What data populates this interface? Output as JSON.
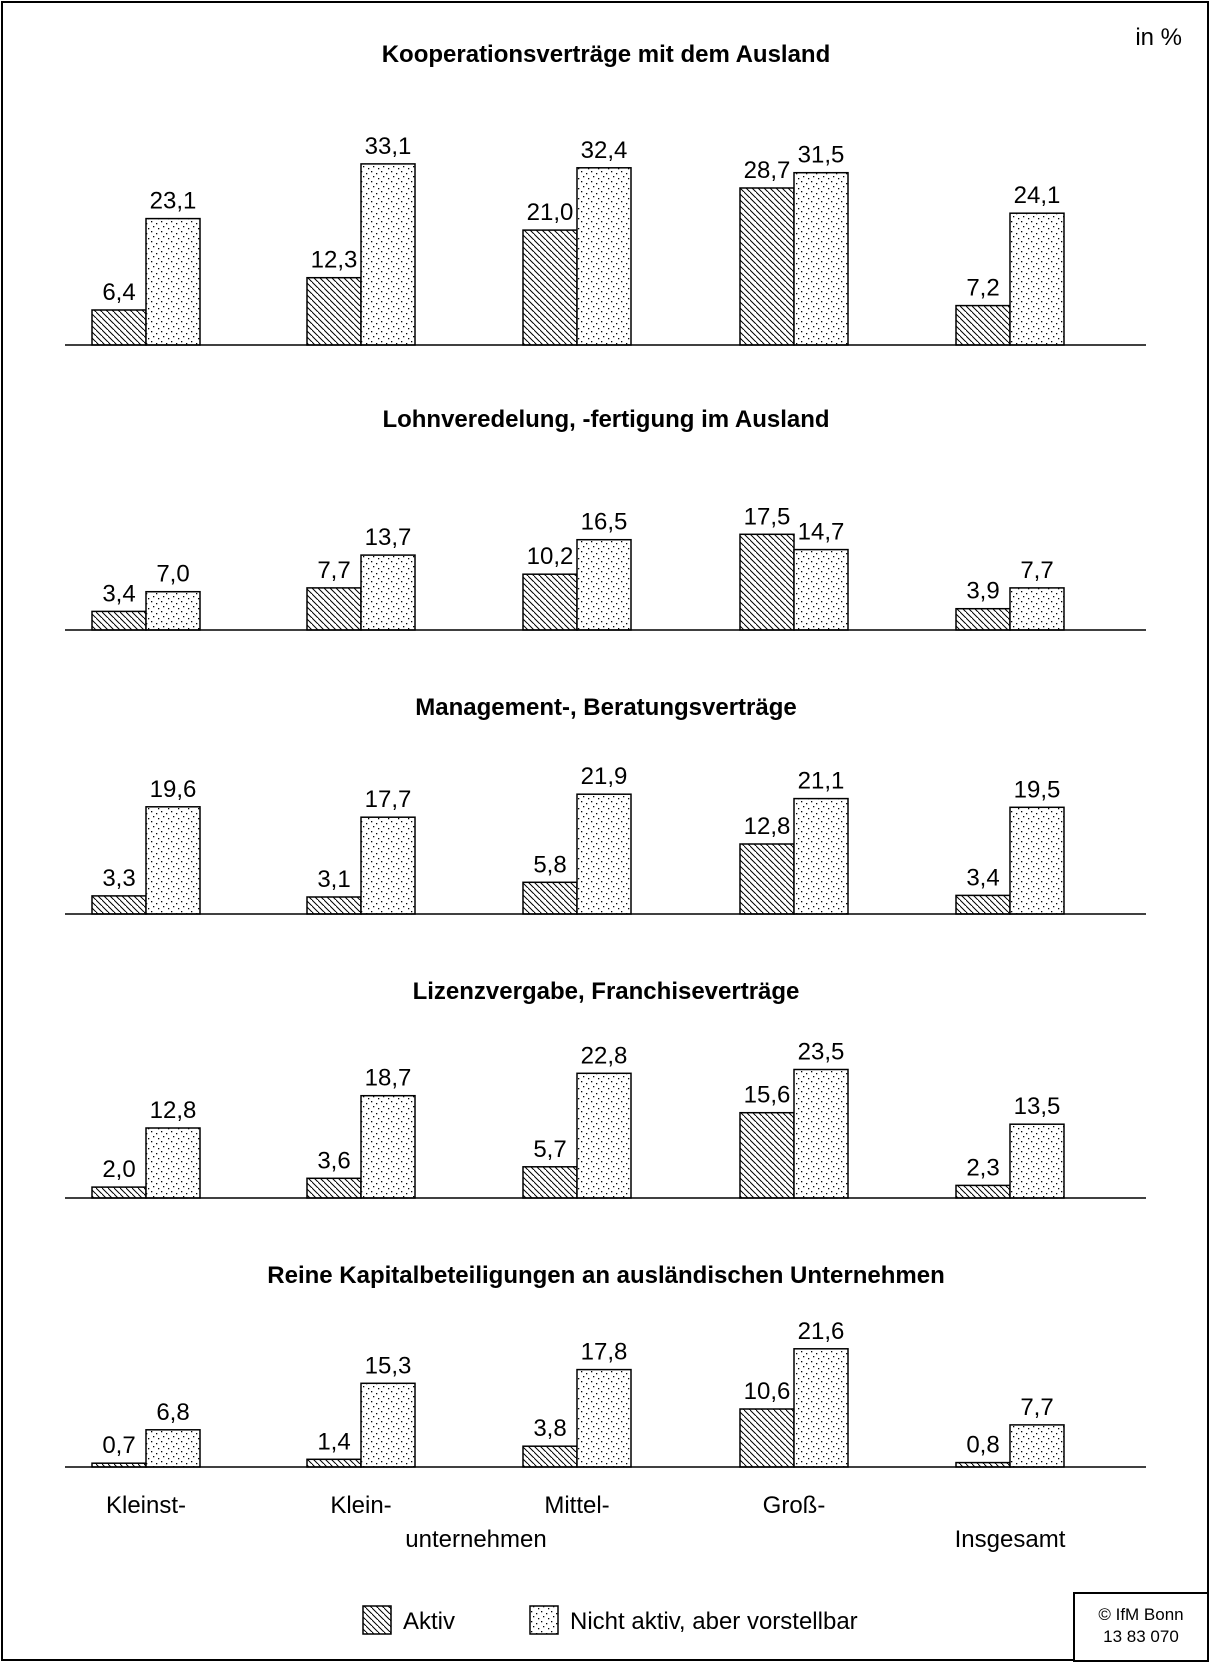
{
  "unit_label": "in %",
  "credit": {
    "line1": "© IfM Bonn",
    "line2": "13  83  070"
  },
  "chart_data": {
    "type": "bar",
    "categories": [
      "Kleinst-",
      "Klein-",
      "Mittel-",
      "Groß-",
      "Insgesamt"
    ],
    "category_caption": "unternehmen",
    "legend": [
      "Aktiv",
      "Nicht aktiv, aber vorstellbar"
    ],
    "patterns": {
      "Aktiv": "diagonal-hatch",
      "Nicht aktiv, aber vorstellbar": "dotted"
    },
    "panels": [
      {
        "title": "Kooperationsverträge mit dem Ausland",
        "series": [
          {
            "name": "Aktiv",
            "values": [
              6.4,
              12.3,
              21.0,
              28.7,
              7.2
            ],
            "labels": [
              "6,4",
              "12,3",
              "21,0",
              "28,7",
              "7,2"
            ]
          },
          {
            "name": "Nicht aktiv, aber vorstellbar",
            "values": [
              23.1,
              33.1,
              32.4,
              31.5,
              24.1
            ],
            "labels": [
              "23,1",
              "33,1",
              "32,4",
              "31,5",
              "24,1"
            ]
          }
        ]
      },
      {
        "title": "Lohnveredelung, -fertigung im Ausland",
        "series": [
          {
            "name": "Aktiv",
            "values": [
              3.4,
              7.7,
              10.2,
              17.5,
              3.9
            ],
            "labels": [
              "3,4",
              "7,7",
              "10,2",
              "17,5",
              "3,9"
            ]
          },
          {
            "name": "Nicht aktiv, aber vorstellbar",
            "values": [
              7.0,
              13.7,
              16.5,
              14.7,
              7.7
            ],
            "labels": [
              "7,0",
              "13,7",
              "16,5",
              "14,7",
              "7,7"
            ]
          }
        ]
      },
      {
        "title": "Management-, Beratungsverträge",
        "series": [
          {
            "name": "Aktiv",
            "values": [
              3.3,
              3.1,
              5.8,
              12.8,
              3.4
            ],
            "labels": [
              "3,3",
              "3,1",
              "5,8",
              "12,8",
              "3,4"
            ]
          },
          {
            "name": "Nicht aktiv, aber vorstellbar",
            "values": [
              19.6,
              17.7,
              21.9,
              21.1,
              19.5
            ],
            "labels": [
              "19,6",
              "17,7",
              "21,9",
              "21,1",
              "19,5"
            ]
          }
        ]
      },
      {
        "title": "Lizenzvergabe, Franchiseverträge",
        "series": [
          {
            "name": "Aktiv",
            "values": [
              2.0,
              3.6,
              5.7,
              15.6,
              2.3
            ],
            "labels": [
              "2,0",
              "3,6",
              "5,7",
              "15,6",
              "2,3"
            ]
          },
          {
            "name": "Nicht aktiv, aber vorstellbar",
            "values": [
              12.8,
              18.7,
              22.8,
              23.5,
              13.5
            ],
            "labels": [
              "12,8",
              "18,7",
              "22,8",
              "23,5",
              "13,5"
            ]
          }
        ]
      },
      {
        "title": "Reine Kapitalbeteiligungen an ausländischen Unternehmen",
        "series": [
          {
            "name": "Aktiv",
            "values": [
              0.7,
              1.4,
              3.8,
              10.6,
              0.8
            ],
            "labels": [
              "0,7",
              "1,4",
              "3,8",
              "10,6",
              "0,8"
            ]
          },
          {
            "name": "Nicht aktiv, aber vorstellbar",
            "values": [
              6.8,
              15.3,
              17.8,
              21.6,
              7.7
            ],
            "labels": [
              "6,8",
              "15,3",
              "17,8",
              "21,6",
              "7,7"
            ]
          }
        ]
      }
    ]
  }
}
